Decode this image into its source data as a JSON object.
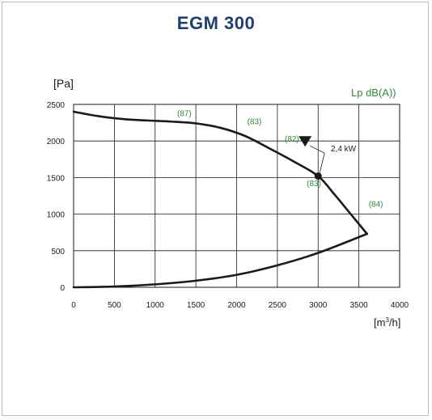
{
  "chart_data": {
    "type": "line",
    "title": "EGM 300",
    "ylabel": "[Pa]",
    "xlabel": "[m³/h]",
    "xlabel_main": "[m",
    "xlabel_sup": "3",
    "xlabel_end": "/h]",
    "right_label": "Lp  dB(A))",
    "xlim": [
      0,
      4000
    ],
    "ylim": [
      0,
      2500
    ],
    "xticks": [
      0,
      500,
      1000,
      1500,
      2000,
      2500,
      3000,
      3500,
      4000
    ],
    "yticks": [
      0,
      500,
      1000,
      1500,
      2000,
      2500
    ],
    "grid": true,
    "series": [
      {
        "role": "fan-curve",
        "x": [
          0,
          300,
          600,
          900,
          1200,
          1500,
          1800,
          2100,
          2400,
          2700,
          3000,
          3200,
          3400,
          3600
        ],
        "y": [
          2400,
          2340,
          2300,
          2280,
          2265,
          2240,
          2180,
          2070,
          1900,
          1720,
          1520,
          1270,
          1000,
          730
        ]
      },
      {
        "role": "system-curve",
        "x": [
          0,
          500,
          1000,
          1500,
          2000,
          2500,
          3000,
          3600
        ],
        "y": [
          0,
          10,
          40,
          90,
          170,
          300,
          470,
          730
        ]
      }
    ],
    "annotations": [
      {
        "text": "(87)",
        "x": 1270,
        "y": 2340
      },
      {
        "text": "(83)",
        "x": 2130,
        "y": 2230
      },
      {
        "text": "(82)",
        "x": 2590,
        "y": 1990
      },
      {
        "text": "(83)",
        "x": 2860,
        "y": 1380
      },
      {
        "text": "(84)",
        "x": 3620,
        "y": 1100
      }
    ],
    "operating_point": {
      "x": 3000,
      "y": 1520
    },
    "power_label": "2,4 kW",
    "marker_point": {
      "x": 2840,
      "y": 2000
    }
  },
  "colors": {
    "title": "#1e3f6e",
    "curve": "#1a1a1a",
    "grid": "#1a1a1a",
    "annotation": "#2e8b3a"
  }
}
